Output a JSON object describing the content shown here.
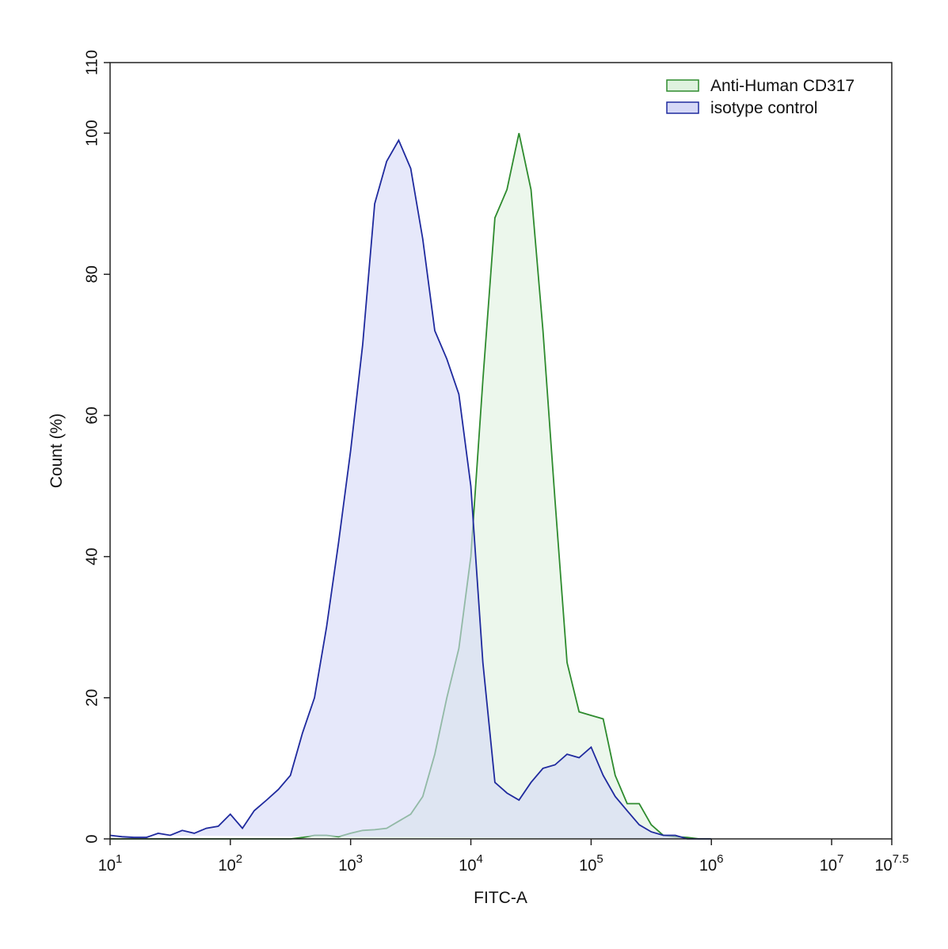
{
  "chart_data": {
    "type": "area",
    "x_label": "FITC-A",
    "y_label": "Count  (%)",
    "xscale": "log",
    "legend": "upper right",
    "xlim": [
      10,
      31622776.6
    ],
    "ylim": [
      0,
      110
    ],
    "xticks": [
      {
        "value": 10,
        "label": "10",
        "sup": "1"
      },
      {
        "value": 100,
        "label": "10",
        "sup": "2"
      },
      {
        "value": 1000,
        "label": "10",
        "sup": "3"
      },
      {
        "value": 10000,
        "label": "10",
        "sup": "4"
      },
      {
        "value": 100000,
        "label": "10",
        "sup": "5"
      },
      {
        "value": 1000000,
        "label": "10",
        "sup": "6"
      },
      {
        "value": 10000000,
        "label": "10",
        "sup": "7"
      },
      {
        "value": 31622776.6,
        "label": "10",
        "sup": "7.5"
      }
    ],
    "yticks": [
      0,
      20,
      40,
      60,
      80,
      100,
      110
    ],
    "x": [
      10,
      12.6,
      15.8,
      20,
      25.1,
      31.6,
      39.8,
      50.1,
      63.1,
      79.4,
      100,
      126,
      158,
      200,
      251,
      316,
      398,
      501,
      631,
      794,
      1000,
      1259,
      1585,
      1995,
      2512,
      3162,
      3981,
      5012,
      6310,
      7943,
      10000,
      12589,
      15849,
      19953,
      25119,
      31623,
      39811,
      50119,
      63096,
      79433,
      100000,
      125893,
      158489,
      199526,
      251189,
      316228,
      398107,
      501187,
      630957,
      794328,
      1000000
    ],
    "series": [
      {
        "name": "Anti-Human CD317",
        "color": "#2e8b2e",
        "fill": "#dff2df",
        "values": [
          0,
          0,
          0,
          0,
          0,
          0,
          0,
          0,
          0,
          0,
          0,
          0,
          0,
          0,
          0,
          0,
          0.2,
          0.5,
          0.5,
          0.3,
          0.8,
          1.2,
          1.3,
          1.5,
          2.5,
          3.5,
          6,
          12,
          20,
          27,
          40,
          65,
          88,
          92,
          100,
          92,
          72,
          48,
          25,
          18,
          17.5,
          17,
          9,
          5,
          5,
          2,
          0.5,
          0.3,
          0.2,
          0,
          0
        ]
      },
      {
        "name": "isotype control",
        "color": "#1f2a9e",
        "fill": "#d6d9f7",
        "values": [
          0.5,
          0.3,
          0.2,
          0.2,
          0.8,
          0.5,
          1.2,
          0.8,
          1.5,
          1.8,
          3.5,
          1.5,
          4,
          5.5,
          7,
          9,
          15,
          20,
          30,
          42,
          55,
          70,
          90,
          96,
          99,
          95,
          85,
          72,
          68,
          63,
          50,
          25,
          8,
          6.5,
          5.5,
          8,
          10,
          10.5,
          12,
          11.5,
          13,
          9,
          6,
          4,
          2,
          1,
          0.5,
          0.5,
          0,
          0,
          0
        ]
      }
    ]
  }
}
